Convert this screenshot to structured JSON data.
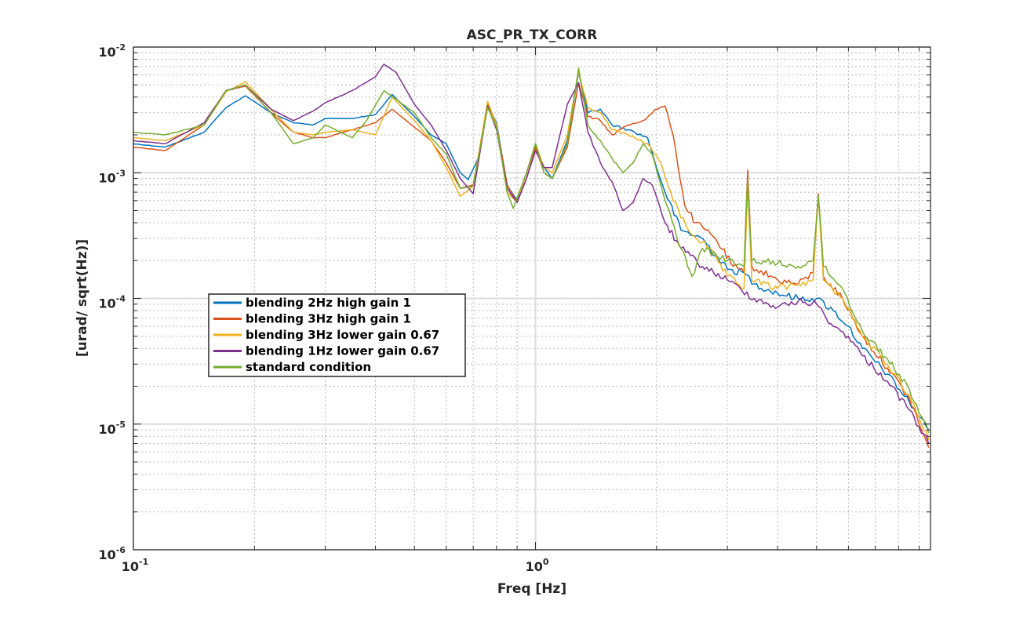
{
  "chart_data": {
    "type": "line",
    "title": "ASC_PR_TX_CORR",
    "xlabel": "Freq [Hz]",
    "ylabel": "[urad/ sqrt(Hz)]",
    "xscale": "log",
    "yscale": "log",
    "xlim": [
      0.1,
      9.6
    ],
    "ylim": [
      1e-06,
      0.01
    ],
    "grid": true,
    "legend_position": "center-left",
    "x_ticks": [
      {
        "value": 0.1,
        "base": "10",
        "exp": "-1"
      },
      {
        "value": 1,
        "base": "10",
        "exp": "0"
      }
    ],
    "y_ticks": [
      {
        "value": 1e-06,
        "base": "10",
        "exp": "-6"
      },
      {
        "value": 1e-05,
        "base": "10",
        "exp": "-5"
      },
      {
        "value": 0.0001,
        "base": "10",
        "exp": "-4"
      },
      {
        "value": 0.001,
        "base": "10",
        "exp": "-3"
      },
      {
        "value": 0.01,
        "base": "10",
        "exp": "-2"
      }
    ],
    "series": [
      {
        "name": "blending 2Hz high gain 1",
        "color": "#0072bd",
        "points": [
          [
            0.1,
            0.0017
          ],
          [
            0.12,
            0.0016
          ],
          [
            0.15,
            0.0021
          ],
          [
            0.17,
            0.0033
          ],
          [
            0.19,
            0.0041
          ],
          [
            0.22,
            0.003
          ],
          [
            0.25,
            0.0025
          ],
          [
            0.28,
            0.0024
          ],
          [
            0.3,
            0.0027
          ],
          [
            0.35,
            0.0027
          ],
          [
            0.4,
            0.0029
          ],
          [
            0.44,
            0.0042
          ],
          [
            0.5,
            0.0028
          ],
          [
            0.55,
            0.002
          ],
          [
            0.6,
            0.0017
          ],
          [
            0.65,
            0.001
          ],
          [
            0.68,
            0.00088
          ],
          [
            0.72,
            0.0013
          ],
          [
            0.76,
            0.0035
          ],
          [
            0.8,
            0.0025
          ],
          [
            0.85,
            0.0008
          ],
          [
            0.9,
            0.0006
          ],
          [
            0.95,
            0.001
          ],
          [
            1.0,
            0.0017
          ],
          [
            1.05,
            0.0011
          ],
          [
            1.1,
            0.0009
          ],
          [
            1.2,
            0.0018
          ],
          [
            1.28,
            0.0063
          ],
          [
            1.35,
            0.003
          ],
          [
            1.45,
            0.0032
          ],
          [
            1.55,
            0.0024
          ],
          [
            1.7,
            0.0022
          ],
          [
            1.9,
            0.0019
          ],
          [
            2.0,
            0.0011
          ],
          [
            2.1,
            0.0007
          ],
          [
            2.3,
            0.00035
          ],
          [
            2.6,
            0.0003
          ],
          [
            3.0,
            0.00017
          ],
          [
            3.3,
            0.00016
          ],
          [
            3.5,
            0.00013
          ],
          [
            4.0,
            0.00011
          ],
          [
            4.5,
            0.0001
          ],
          [
            5.0,
            0.0001
          ],
          [
            5.5,
            8e-05
          ],
          [
            6.0,
            6e-05
          ],
          [
            6.5,
            4e-05
          ],
          [
            7.5,
            2.5e-05
          ],
          [
            8.5,
            1.5e-05
          ],
          [
            9.5,
            9e-06
          ]
        ]
      },
      {
        "name": "blending 3Hz high gain 1",
        "color": "#d95319",
        "points": [
          [
            0.1,
            0.0016
          ],
          [
            0.12,
            0.0015
          ],
          [
            0.15,
            0.0024
          ],
          [
            0.17,
            0.0045
          ],
          [
            0.19,
            0.0049
          ],
          [
            0.22,
            0.003
          ],
          [
            0.25,
            0.0021
          ],
          [
            0.28,
            0.0019
          ],
          [
            0.3,
            0.0019
          ],
          [
            0.35,
            0.0022
          ],
          [
            0.4,
            0.0025
          ],
          [
            0.44,
            0.0032
          ],
          [
            0.5,
            0.0023
          ],
          [
            0.55,
            0.0018
          ],
          [
            0.6,
            0.0012
          ],
          [
            0.65,
            0.00075
          ],
          [
            0.7,
            0.0008
          ],
          [
            0.76,
            0.0036
          ],
          [
            0.8,
            0.0024
          ],
          [
            0.85,
            0.0008
          ],
          [
            0.9,
            0.00058
          ],
          [
            0.95,
            0.0009
          ],
          [
            1.0,
            0.0016
          ],
          [
            1.05,
            0.001
          ],
          [
            1.1,
            0.0009
          ],
          [
            1.2,
            0.0016
          ],
          [
            1.28,
            0.0052
          ],
          [
            1.35,
            0.0028
          ],
          [
            1.45,
            0.0026
          ],
          [
            1.55,
            0.002
          ],
          [
            1.7,
            0.0024
          ],
          [
            1.85,
            0.0026
          ],
          [
            2.0,
            0.0032
          ],
          [
            2.1,
            0.0034
          ],
          [
            2.2,
            0.002
          ],
          [
            2.35,
            0.00055
          ],
          [
            2.5,
            0.0004
          ],
          [
            2.8,
            0.0003
          ],
          [
            3.1,
            0.00018
          ],
          [
            3.3,
            0.00016
          ],
          [
            3.37,
            0.00105
          ],
          [
            3.45,
            0.00018
          ],
          [
            4.0,
            0.00014
          ],
          [
            4.5,
            0.00013
          ],
          [
            4.9,
            0.00016
          ],
          [
            5.05,
            0.00068
          ],
          [
            5.2,
            0.00015
          ],
          [
            5.8,
            0.0001
          ],
          [
            6.5,
            5e-05
          ],
          [
            7.5,
            2.8e-05
          ],
          [
            8.5,
            1.6e-05
          ],
          [
            9.5,
            6.5e-06
          ]
        ]
      },
      {
        "name": "blending 3Hz lower gain 0.67",
        "color": "#edb120",
        "points": [
          [
            0.1,
            0.0019
          ],
          [
            0.12,
            0.0018
          ],
          [
            0.15,
            0.0024
          ],
          [
            0.17,
            0.0044
          ],
          [
            0.19,
            0.0053
          ],
          [
            0.22,
            0.0032
          ],
          [
            0.25,
            0.0021
          ],
          [
            0.28,
            0.002
          ],
          [
            0.3,
            0.0021
          ],
          [
            0.35,
            0.0022
          ],
          [
            0.4,
            0.002
          ],
          [
            0.44,
            0.004
          ],
          [
            0.5,
            0.0026
          ],
          [
            0.55,
            0.0018
          ],
          [
            0.6,
            0.0011
          ],
          [
            0.65,
            0.00065
          ],
          [
            0.7,
            0.00078
          ],
          [
            0.76,
            0.0037
          ],
          [
            0.8,
            0.0024
          ],
          [
            0.85,
            0.0007
          ],
          [
            0.9,
            0.00058
          ],
          [
            0.95,
            0.001
          ],
          [
            1.0,
            0.0017
          ],
          [
            1.05,
            0.0011
          ],
          [
            1.1,
            0.001
          ],
          [
            1.2,
            0.002
          ],
          [
            1.28,
            0.0064
          ],
          [
            1.35,
            0.0033
          ],
          [
            1.45,
            0.003
          ],
          [
            1.55,
            0.0022
          ],
          [
            1.7,
            0.002
          ],
          [
            1.9,
            0.0017
          ],
          [
            2.05,
            0.0012
          ],
          [
            2.2,
            0.0006
          ],
          [
            2.4,
            0.00035
          ],
          [
            2.7,
            0.00025
          ],
          [
            3.0,
            0.00015
          ],
          [
            3.3,
            0.00012
          ],
          [
            3.37,
            0.0008
          ],
          [
            3.45,
            0.00014
          ],
          [
            4.0,
            0.00012
          ],
          [
            4.5,
            0.00013
          ],
          [
            4.9,
            0.00014
          ],
          [
            5.05,
            0.00065
          ],
          [
            5.2,
            0.00014
          ],
          [
            5.8,
            0.0001
          ],
          [
            6.5,
            5e-05
          ],
          [
            7.5,
            3e-05
          ],
          [
            8.5,
            1.7e-05
          ],
          [
            9.5,
            7.5e-06
          ]
        ]
      },
      {
        "name": "blending 1Hz lower gain 0.67",
        "color": "#7e2f8e",
        "points": [
          [
            0.1,
            0.0018
          ],
          [
            0.12,
            0.0017
          ],
          [
            0.15,
            0.0025
          ],
          [
            0.17,
            0.0045
          ],
          [
            0.19,
            0.005
          ],
          [
            0.22,
            0.0032
          ],
          [
            0.25,
            0.0026
          ],
          [
            0.28,
            0.0031
          ],
          [
            0.3,
            0.0036
          ],
          [
            0.35,
            0.0045
          ],
          [
            0.4,
            0.0058
          ],
          [
            0.42,
            0.0073
          ],
          [
            0.45,
            0.0063
          ],
          [
            0.5,
            0.0035
          ],
          [
            0.55,
            0.0024
          ],
          [
            0.6,
            0.0015
          ],
          [
            0.65,
            0.0009
          ],
          [
            0.7,
            0.00068
          ],
          [
            0.76,
            0.0034
          ],
          [
            0.8,
            0.0022
          ],
          [
            0.85,
            0.00075
          ],
          [
            0.9,
            0.00058
          ],
          [
            0.95,
            0.0009
          ],
          [
            1.0,
            0.0015
          ],
          [
            1.05,
            0.0011
          ],
          [
            1.1,
            0.0011
          ],
          [
            1.2,
            0.0035
          ],
          [
            1.28,
            0.0052
          ],
          [
            1.35,
            0.0021
          ],
          [
            1.45,
            0.0012
          ],
          [
            1.55,
            0.00085
          ],
          [
            1.65,
            0.0005
          ],
          [
            1.75,
            0.00058
          ],
          [
            1.85,
            0.0009
          ],
          [
            1.95,
            0.0008
          ],
          [
            2.1,
            0.0004
          ],
          [
            2.3,
            0.00025
          ],
          [
            2.6,
            0.00018
          ],
          [
            3.0,
            0.00014
          ],
          [
            3.5,
            0.0001
          ],
          [
            4.0,
            8.5e-05
          ],
          [
            4.5,
            9.5e-05
          ],
          [
            5.0,
            9e-05
          ],
          [
            5.5,
            6e-05
          ],
          [
            6.0,
            5e-05
          ],
          [
            6.5,
            3.5e-05
          ],
          [
            7.5,
            2.2e-05
          ],
          [
            8.5,
            1.3e-05
          ],
          [
            9.5,
            7e-06
          ]
        ]
      },
      {
        "name": "standard condition",
        "color": "#77ac30",
        "points": [
          [
            0.1,
            0.0021
          ],
          [
            0.12,
            0.002
          ],
          [
            0.15,
            0.0024
          ],
          [
            0.17,
            0.0045
          ],
          [
            0.19,
            0.005
          ],
          [
            0.22,
            0.003
          ],
          [
            0.25,
            0.0017
          ],
          [
            0.28,
            0.0019
          ],
          [
            0.3,
            0.0024
          ],
          [
            0.35,
            0.0019
          ],
          [
            0.38,
            0.0026
          ],
          [
            0.42,
            0.0045
          ],
          [
            0.5,
            0.003
          ],
          [
            0.55,
            0.0019
          ],
          [
            0.6,
            0.0014
          ],
          [
            0.65,
            0.00075
          ],
          [
            0.7,
            0.00078
          ],
          [
            0.76,
            0.0033
          ],
          [
            0.8,
            0.0023
          ],
          [
            0.85,
            0.0007
          ],
          [
            0.88,
            0.00052
          ],
          [
            0.95,
            0.001
          ],
          [
            1.0,
            0.0017
          ],
          [
            1.05,
            0.001
          ],
          [
            1.1,
            0.0009
          ],
          [
            1.2,
            0.0017
          ],
          [
            1.28,
            0.0068
          ],
          [
            1.35,
            0.0024
          ],
          [
            1.45,
            0.0018
          ],
          [
            1.55,
            0.0013
          ],
          [
            1.65,
            0.001
          ],
          [
            1.75,
            0.0012
          ],
          [
            1.85,
            0.0017
          ],
          [
            1.95,
            0.0014
          ],
          [
            2.1,
            0.0006
          ],
          [
            2.3,
            0.00025
          ],
          [
            2.45,
            0.00015
          ],
          [
            2.6,
            0.00025
          ],
          [
            3.0,
            0.0002
          ],
          [
            3.3,
            0.00018
          ],
          [
            3.37,
            0.0009
          ],
          [
            3.45,
            0.0002
          ],
          [
            4.0,
            0.00019
          ],
          [
            4.5,
            0.00018
          ],
          [
            4.9,
            0.0002
          ],
          [
            5.05,
            0.00065
          ],
          [
            5.2,
            0.00018
          ],
          [
            5.8,
            0.00012
          ],
          [
            6.5,
            5.5e-05
          ],
          [
            7.5,
            3.3e-05
          ],
          [
            8.5,
            1.9e-05
          ],
          [
            9.5,
            8.5e-06
          ]
        ]
      }
    ]
  }
}
